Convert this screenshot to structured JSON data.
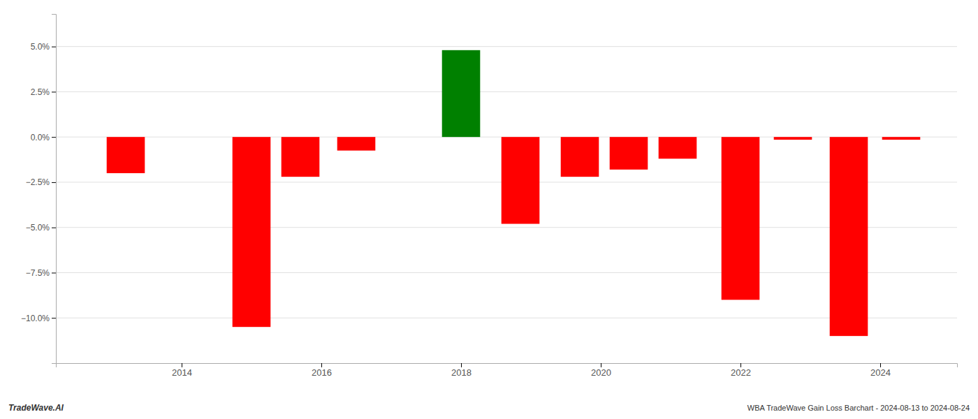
{
  "chart_data": {
    "type": "bar",
    "x": [
      2013.2,
      2015.0,
      2015.7,
      2016.5,
      2018.0,
      2018.85,
      2019.7,
      2020.4,
      2021.1,
      2022.0,
      2022.75,
      2023.55,
      2024.3
    ],
    "values": [
      -2.0,
      -10.5,
      -2.2,
      -0.75,
      4.8,
      -4.8,
      -2.2,
      -1.8,
      -1.2,
      -9.0,
      -0.15,
      -11.0,
      -0.15
    ],
    "colors": [
      "red",
      "red",
      "red",
      "red",
      "green",
      "red",
      "red",
      "red",
      "red",
      "red",
      "red",
      "red",
      "red"
    ],
    "xlim": [
      2012.2,
      2025.1
    ],
    "xticks": [
      2014,
      2016,
      2018,
      2020,
      2022,
      2024
    ],
    "ylim": [
      -12.5,
      6.8
    ],
    "yticks": [
      {
        "value": 5.0,
        "label": "5.0%"
      },
      {
        "value": 2.5,
        "label": "2.5%"
      },
      {
        "value": 0.0,
        "label": "0.0%"
      },
      {
        "value": -2.5,
        "label": "−2.5%"
      },
      {
        "value": -5.0,
        "label": "−5.0%"
      },
      {
        "value": -7.5,
        "label": "−7.5%"
      },
      {
        "value": -10.0,
        "label": "−10.0%"
      }
    ],
    "grid": true,
    "annotations": [
      "TradeWave.AI",
      "WBA TradeWave Gain Loss Barchart - 2024-08-13 to 2024-08-24"
    ]
  }
}
